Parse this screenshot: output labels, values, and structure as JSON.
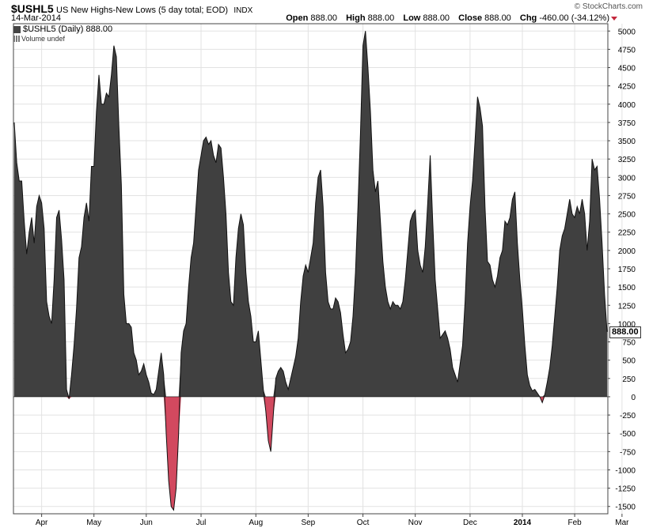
{
  "header": {
    "symbol": "$USHL5",
    "description": "US New Highs-New Lows (5 day total; EOD)",
    "exchange": "INDX",
    "date": "14-Mar-2014",
    "copyright": "© StockCharts.com",
    "ohlc": [
      {
        "label": "Open",
        "value": "888.00"
      },
      {
        "label": "High",
        "value": "888.00"
      },
      {
        "label": "Low",
        "value": "888.00"
      },
      {
        "label": "Close",
        "value": "888.00"
      },
      {
        "label": "Chg",
        "value": "-460.00 (-34.12%)"
      }
    ]
  },
  "legend": {
    "series_label": "$USHL5 (Daily) 888.00",
    "volume_label": "Volume undef"
  },
  "last_value": "888.00",
  "colors": {
    "positive": "#404040",
    "negative": "#d2495f",
    "grid": "#e2e2e2",
    "bg": "#ffffff"
  },
  "chart_data": {
    "type": "area",
    "title": "US New Highs-New Lows (5 day total; EOD)",
    "ylim": [
      -1600,
      5100
    ],
    "yticks": [
      -1500,
      -1250,
      -1000,
      -750,
      -500,
      -250,
      0,
      250,
      500,
      750,
      1000,
      1250,
      1500,
      1750,
      2000,
      2250,
      2500,
      2750,
      3000,
      3250,
      3500,
      3750,
      4000,
      4250,
      4500,
      4750,
      5000
    ],
    "xlabels": [
      "Apr",
      "May",
      "Jun",
      "Jul",
      "Aug",
      "Sep",
      "Oct",
      "Nov",
      "Dec",
      "2014",
      "Feb",
      "Mar"
    ],
    "xlabel_index": [
      11,
      32,
      53,
      75,
      97,
      118,
      140,
      161,
      183,
      204,
      225,
      244
    ],
    "grid": true,
    "series": [
      {
        "values": [
          3750,
          3200,
          2950,
          2950,
          2400,
          1950,
          2250,
          2450,
          2100,
          2600,
          2750,
          2650,
          2300,
          1300,
          1100,
          1000,
          1600,
          2450,
          2550,
          2150,
          1600,
          100,
          -30,
          300,
          700,
          1200,
          1900,
          2050,
          2450,
          2650,
          2400,
          3150,
          3150,
          3900,
          4400,
          4000,
          4000,
          4150,
          4100,
          4400,
          4800,
          4650,
          3700,
          2900,
          1400,
          1000,
          1000,
          950,
          600,
          500,
          300,
          350,
          450,
          300,
          200,
          50,
          30,
          100,
          350,
          600,
          300,
          -500,
          -1150,
          -1500,
          -1550,
          -1250,
          -500,
          600,
          900,
          1000,
          1500,
          1900,
          2100,
          2600,
          3100,
          3300,
          3500,
          3550,
          3450,
          3500,
          3300,
          3200,
          3450,
          3400,
          3000,
          2500,
          1700,
          1300,
          1250,
          1900,
          2300,
          2500,
          2350,
          1700,
          1300,
          1100,
          750,
          750,
          900,
          500,
          100,
          -200,
          -600,
          -750,
          -250,
          250,
          350,
          400,
          350,
          200,
          100,
          250,
          400,
          550,
          800,
          1300,
          1650,
          1800,
          1700,
          1900,
          2100,
          2650,
          3000,
          3100,
          2600,
          1700,
          1300,
          1200,
          1200,
          1350,
          1300,
          1150,
          850,
          600,
          650,
          750,
          1100,
          1700,
          2600,
          3600,
          4800,
          5000,
          4500,
          3900,
          3100,
          2800,
          2950,
          2400,
          1850,
          1500,
          1300,
          1200,
          1300,
          1250,
          1250,
          1200,
          1300,
          1600,
          2000,
          2400,
          2500,
          2550,
          2000,
          1800,
          1700,
          2050,
          2650,
          3300,
          2400,
          1600,
          1200,
          800,
          850,
          900,
          800,
          650,
          400,
          300,
          200,
          450,
          700,
          1300,
          2100,
          2600,
          2950,
          3500,
          4100,
          3950,
          3700,
          2600,
          1850,
          1800,
          1600,
          1500,
          1650,
          1900,
          2000,
          2400,
          2350,
          2450,
          2700,
          2800,
          2100,
          1600,
          1200,
          700,
          300,
          150,
          80,
          100,
          50,
          0,
          -80,
          30,
          200,
          400,
          700,
          1100,
          1500,
          2000,
          2200,
          2300,
          2500,
          2700,
          2500,
          2450,
          2600,
          2500,
          2700,
          2500,
          2000,
          2400,
          3250,
          3100,
          3150,
          2700,
          2100,
          1400,
          888
        ]
      }
    ]
  }
}
